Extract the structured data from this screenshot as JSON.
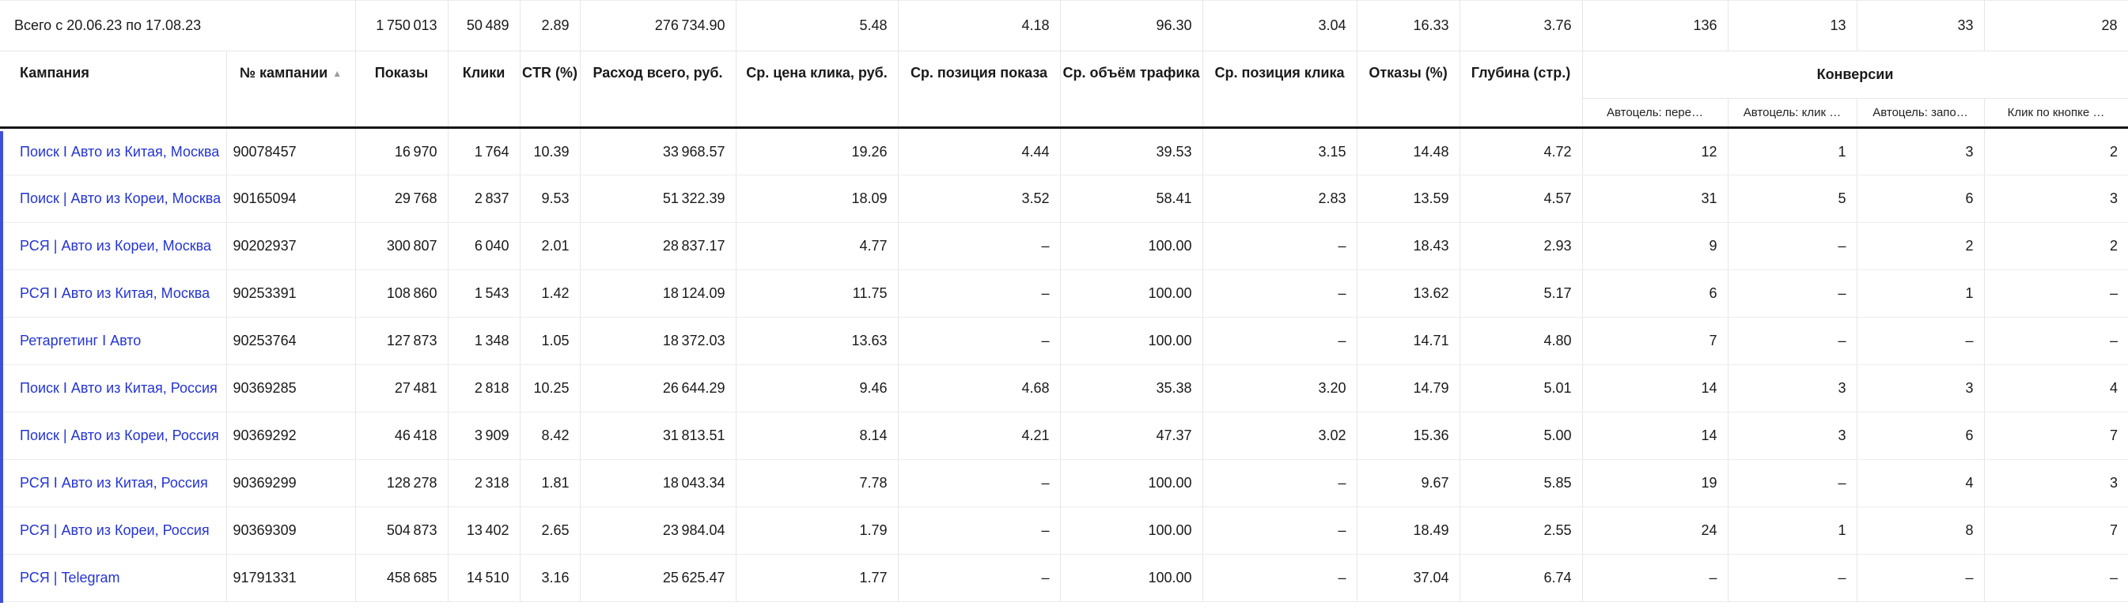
{
  "colors": {
    "link": "#2434d2",
    "accent": "#3e4fd8"
  },
  "table": {
    "totals": {
      "label": "Всего с 20.06.23 по 17.08.23",
      "values": [
        "1 750 013",
        "50 489",
        "2.89",
        "276 734.90",
        "5.48",
        "4.18",
        "96.30",
        "3.04",
        "16.33",
        "3.76",
        "136",
        "13",
        "33",
        "28"
      ]
    },
    "columns": [
      "Кампания",
      "№ кампании",
      "Показы",
      "Клики",
      "CTR (%)",
      "Расход всего, руб.",
      "Ср. цена клика, руб.",
      "Ср. позиция показа",
      "Ср. объём трафика",
      "Ср. позиция клика",
      "Отказы (%)",
      "Глубина (стр.)"
    ],
    "sort_icon": "▲",
    "conversions": {
      "label": "Конверсии",
      "sub_columns": [
        "Автоцель: пере…",
        "Автоцель: клик …",
        "Автоцель: запо…",
        "Клик по кнопке …"
      ]
    },
    "rows": [
      {
        "campaign": "Поиск I Авто из Китая, Москва",
        "id": "90078457",
        "values": [
          "16 970",
          "1 764",
          "10.39",
          "33 968.57",
          "19.26",
          "4.44",
          "39.53",
          "3.15",
          "14.48",
          "4.72",
          "12",
          "1",
          "3",
          "2"
        ]
      },
      {
        "campaign": "Поиск | Авто из Кореи, Москва",
        "id": "90165094",
        "values": [
          "29 768",
          "2 837",
          "9.53",
          "51 322.39",
          "18.09",
          "3.52",
          "58.41",
          "2.83",
          "13.59",
          "4.57",
          "31",
          "5",
          "6",
          "3"
        ]
      },
      {
        "campaign": "РСЯ | Авто из Кореи, Москва",
        "id": "90202937",
        "values": [
          "300 807",
          "6 040",
          "2.01",
          "28 837.17",
          "4.77",
          "–",
          "100.00",
          "–",
          "18.43",
          "2.93",
          "9",
          "–",
          "2",
          "2"
        ]
      },
      {
        "campaign": "РСЯ I Авто из Китая, Москва",
        "id": "90253391",
        "values": [
          "108 860",
          "1 543",
          "1.42",
          "18 124.09",
          "11.75",
          "–",
          "100.00",
          "–",
          "13.62",
          "5.17",
          "6",
          "–",
          "1",
          "–"
        ]
      },
      {
        "campaign": "Ретаргетинг I Авто",
        "id": "90253764",
        "values": [
          "127 873",
          "1 348",
          "1.05",
          "18 372.03",
          "13.63",
          "–",
          "100.00",
          "–",
          "14.71",
          "4.80",
          "7",
          "–",
          "–",
          "–"
        ]
      },
      {
        "campaign": "Поиск I Авто из Китая, Россия",
        "id": "90369285",
        "values": [
          "27 481",
          "2 818",
          "10.25",
          "26 644.29",
          "9.46",
          "4.68",
          "35.38",
          "3.20",
          "14.79",
          "5.01",
          "14",
          "3",
          "3",
          "4"
        ]
      },
      {
        "campaign": "Поиск | Авто из Кореи, Россия",
        "id": "90369292",
        "values": [
          "46 418",
          "3 909",
          "8.42",
          "31 813.51",
          "8.14",
          "4.21",
          "47.37",
          "3.02",
          "15.36",
          "5.00",
          "14",
          "3",
          "6",
          "7"
        ]
      },
      {
        "campaign": "РСЯ I Авто из Китая, Россия",
        "id": "90369299",
        "values": [
          "128 278",
          "2 318",
          "1.81",
          "18 043.34",
          "7.78",
          "–",
          "100.00",
          "–",
          "9.67",
          "5.85",
          "19",
          "–",
          "4",
          "3"
        ]
      },
      {
        "campaign": "РСЯ | Авто из Кореи, Россия",
        "id": "90369309",
        "values": [
          "504 873",
          "13 402",
          "2.65",
          "23 984.04",
          "1.79",
          "–",
          "100.00",
          "–",
          "18.49",
          "2.55",
          "24",
          "1",
          "8",
          "7"
        ]
      },
      {
        "campaign": "РСЯ | Telegram",
        "id": "91791331",
        "values": [
          "458 685",
          "14 510",
          "3.16",
          "25 625.47",
          "1.77",
          "–",
          "100.00",
          "–",
          "37.04",
          "6.74",
          "–",
          "–",
          "–",
          "–"
        ]
      }
    ]
  }
}
